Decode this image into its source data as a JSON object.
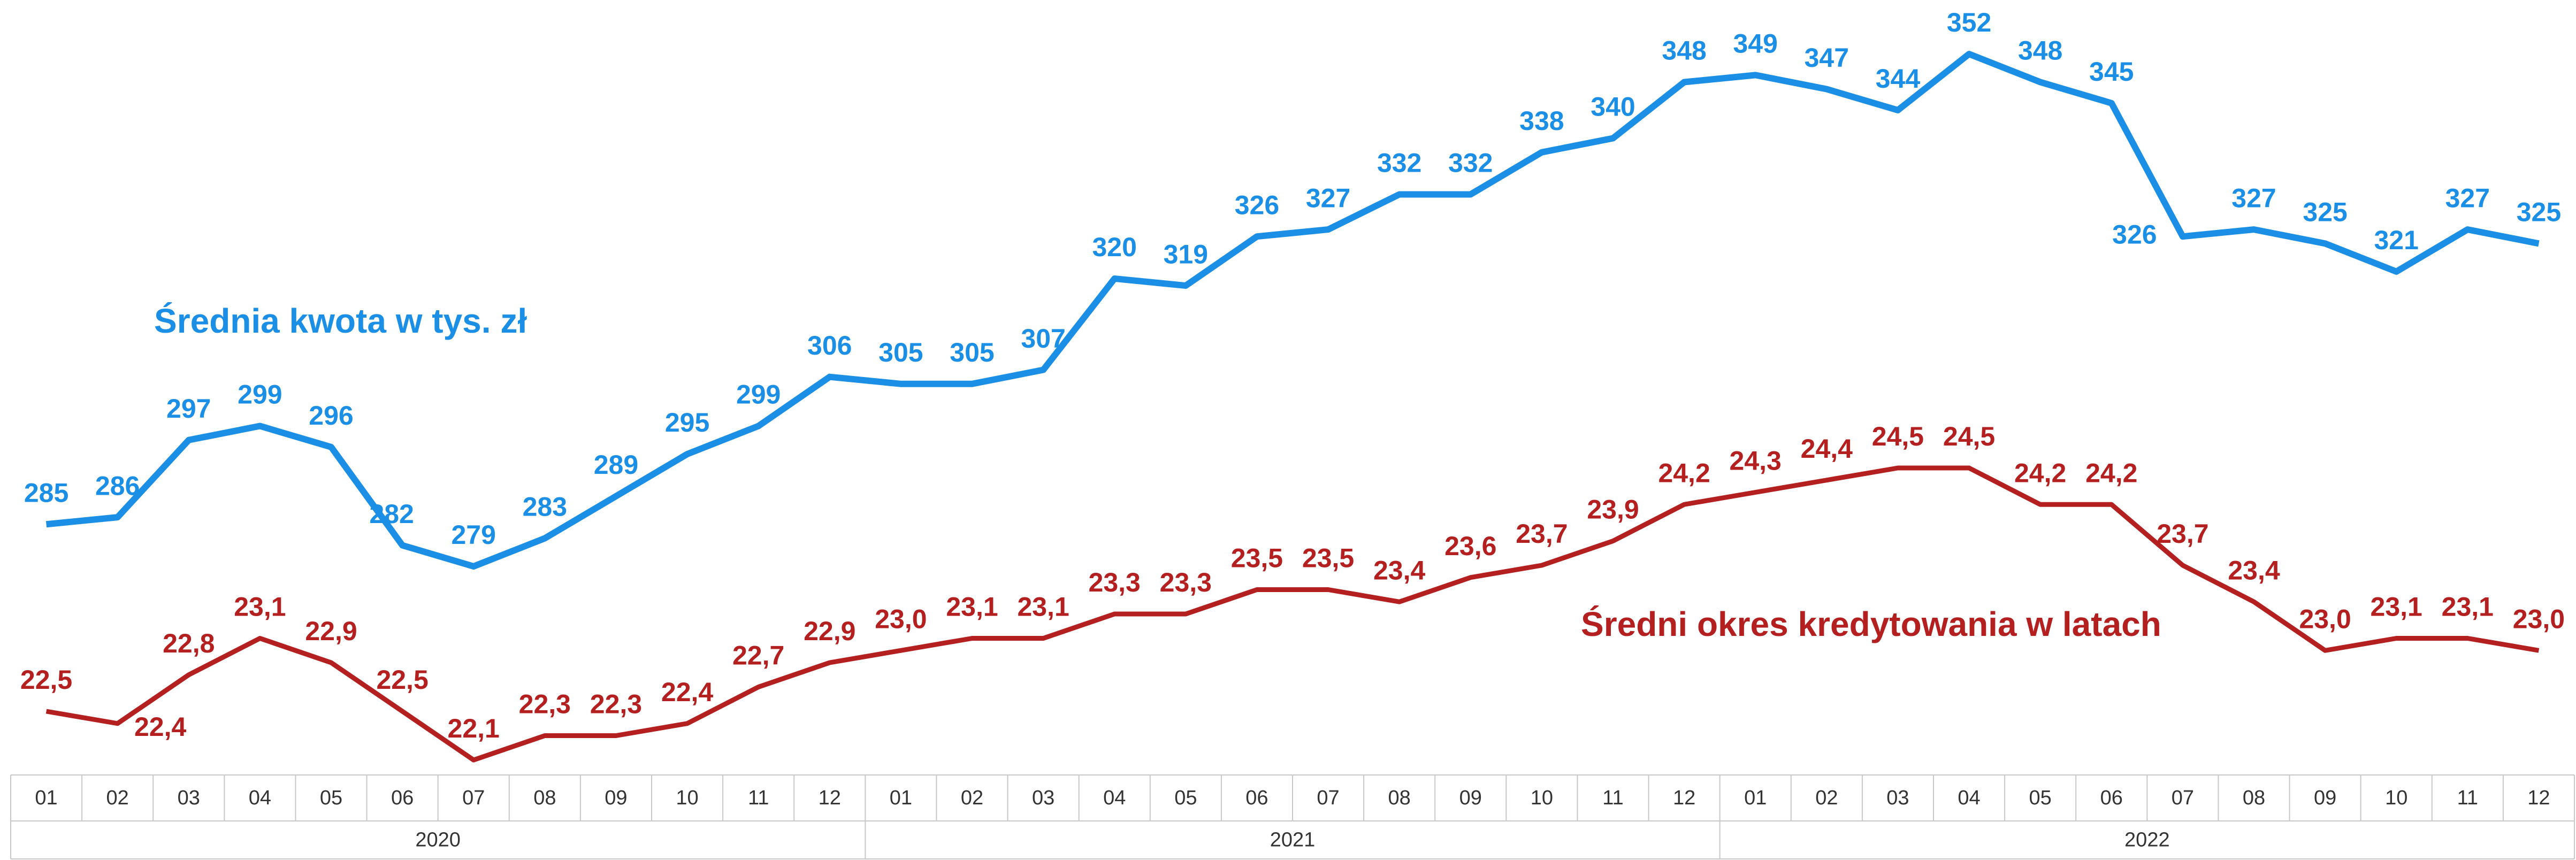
{
  "chart_data": {
    "type": "line",
    "categories": [
      "01",
      "02",
      "03",
      "04",
      "05",
      "06",
      "07",
      "08",
      "09",
      "10",
      "11",
      "12",
      "01",
      "02",
      "03",
      "04",
      "05",
      "06",
      "07",
      "08",
      "09",
      "10",
      "11",
      "12",
      "01",
      "02",
      "03",
      "04",
      "05",
      "06",
      "07",
      "08",
      "09",
      "10",
      "11",
      "12"
    ],
    "years": [
      "2020",
      "2021",
      "2022"
    ],
    "series": [
      {
        "name": "Średnia kwota w tys. zł",
        "color": "#1b8fe6",
        "values": [
          285,
          286,
          297,
          299,
          296,
          282,
          279,
          283,
          289,
          295,
          299,
          306,
          305,
          305,
          307,
          320,
          319,
          326,
          327,
          332,
          332,
          338,
          340,
          348,
          349,
          347,
          344,
          352,
          348,
          345,
          326,
          327,
          325,
          321,
          327,
          325
        ]
      },
      {
        "name": "Średni okres kredytowania w latach",
        "color": "#b3201f",
        "values": [
          22.5,
          22.4,
          22.8,
          23.1,
          22.9,
          22.5,
          22.1,
          22.3,
          22.3,
          22.4,
          22.7,
          22.9,
          23.0,
          23.1,
          23.1,
          23.3,
          23.3,
          23.5,
          23.5,
          23.4,
          23.6,
          23.7,
          23.9,
          24.2,
          24.3,
          24.4,
          24.5,
          24.5,
          24.2,
          24.2,
          23.7,
          23.4,
          23.0,
          23.1,
          23.1,
          23.0
        ],
        "value_labels": [
          "22,5",
          "22,4",
          "22,8",
          "23,1",
          "22,9",
          "22,5",
          "22,1",
          "22,3",
          "22,3",
          "22,4",
          "22,7",
          "22,9",
          "23,0",
          "23,1",
          "23,1",
          "23,3",
          "23,3",
          "23,5",
          "23,5",
          "23,4",
          "23,6",
          "23,7",
          "23,9",
          "24,2",
          "24,3",
          "24,4",
          "24,5",
          "24,5",
          "24,2",
          "24,2",
          "23,7",
          "23,4",
          "23,0",
          "23,1",
          "23,1",
          "23,0"
        ]
      }
    ]
  }
}
